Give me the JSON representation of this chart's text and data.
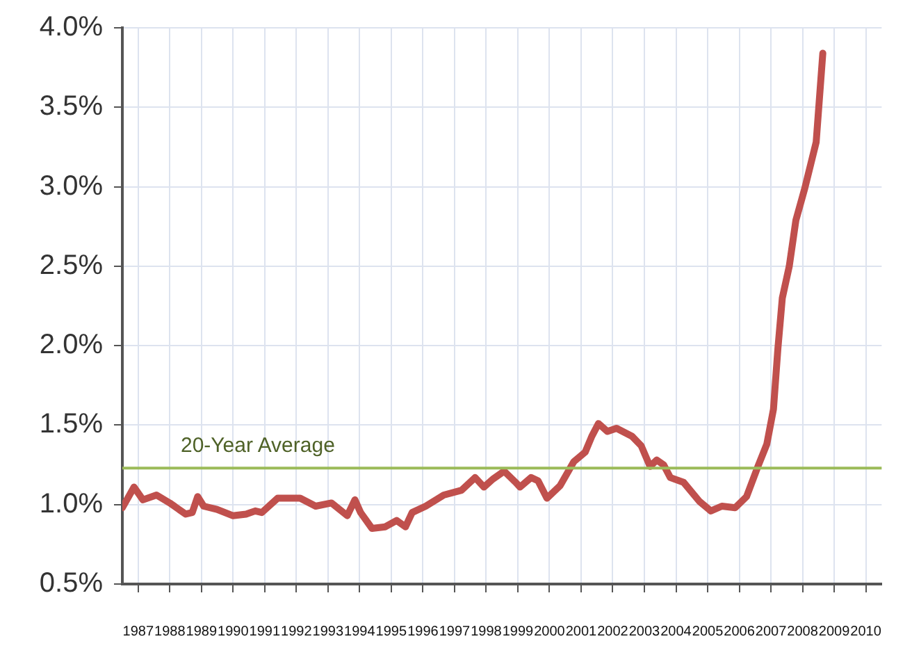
{
  "chart_data": {
    "type": "line",
    "x": [
      1986.5,
      1986.87,
      1987.15,
      1987.58,
      1988.0,
      1988.5,
      1988.71,
      1988.88,
      1989.07,
      1989.49,
      1989.99,
      1990.41,
      1990.7,
      1990.91,
      1991.41,
      1992.12,
      1992.61,
      1993.11,
      1993.61,
      1993.85,
      1994.03,
      1994.39,
      1994.81,
      1995.17,
      1995.45,
      1995.66,
      1996.09,
      1996.66,
      1997.22,
      1997.65,
      1997.93,
      1998.21,
      1998.57,
      1998.93,
      1999.07,
      1999.42,
      1999.64,
      1999.92,
      2000.34,
      2000.77,
      2001.13,
      2001.34,
      2001.55,
      2001.83,
      2002.12,
      2002.61,
      2002.9,
      2003.18,
      2003.39,
      2003.61,
      2003.82,
      2004.24,
      2004.74,
      2005.1,
      2005.45,
      2005.87,
      2006.23,
      2006.59,
      2006.87,
      2007.08,
      2007.22,
      2007.36,
      2007.58,
      2007.79,
      2008.07,
      2008.43,
      2008.64
    ],
    "series": [
      {
        "color": "#c0504d",
        "values": [
          0.98,
          1.11,
          1.03,
          1.06,
          1.01,
          0.94,
          0.95,
          1.05,
          0.99,
          0.97,
          0.93,
          0.94,
          0.96,
          0.95,
          1.04,
          1.04,
          0.99,
          1.01,
          0.93,
          1.03,
          0.95,
          0.85,
          0.86,
          0.9,
          0.86,
          0.95,
          0.99,
          1.06,
          1.09,
          1.17,
          1.11,
          1.16,
          1.21,
          1.14,
          1.11,
          1.17,
          1.15,
          1.04,
          1.12,
          1.27,
          1.33,
          1.43,
          1.51,
          1.46,
          1.48,
          1.43,
          1.37,
          1.24,
          1.28,
          1.25,
          1.17,
          1.14,
          1.02,
          0.96,
          0.99,
          0.98,
          1.05,
          1.24,
          1.38,
          1.6,
          1.98,
          2.3,
          2.5,
          2.79,
          2.99,
          3.28,
          3.84
        ]
      }
    ],
    "xlim": [
      1986.5,
      2010.5
    ],
    "xticks": [
      1987,
      1988,
      1989,
      1990,
      1991,
      1992,
      1993,
      1994,
      1995,
      1996,
      1997,
      1998,
      1999,
      2000,
      2001,
      2002,
      2003,
      2004,
      2005,
      2006,
      2007,
      2008,
      2009,
      2010
    ],
    "ylim": [
      0.5,
      4.0
    ],
    "yticks": [
      {
        "value": 0.5,
        "label": "0.5%"
      },
      {
        "value": 1.0,
        "label": "1.0%"
      },
      {
        "value": 1.5,
        "label": "1.5%"
      },
      {
        "value": 2.0,
        "label": "2.0%"
      },
      {
        "value": 2.5,
        "label": "2.5%"
      },
      {
        "value": 3.0,
        "label": "3.0%"
      },
      {
        "value": 3.5,
        "label": "3.5%"
      },
      {
        "value": 4.0,
        "label": "4.0%"
      }
    ],
    "grid": true,
    "ref_lines": [
      {
        "axis": "y",
        "value": 1.23,
        "label": "20-Year Average",
        "color": "#9bbb59"
      }
    ]
  }
}
